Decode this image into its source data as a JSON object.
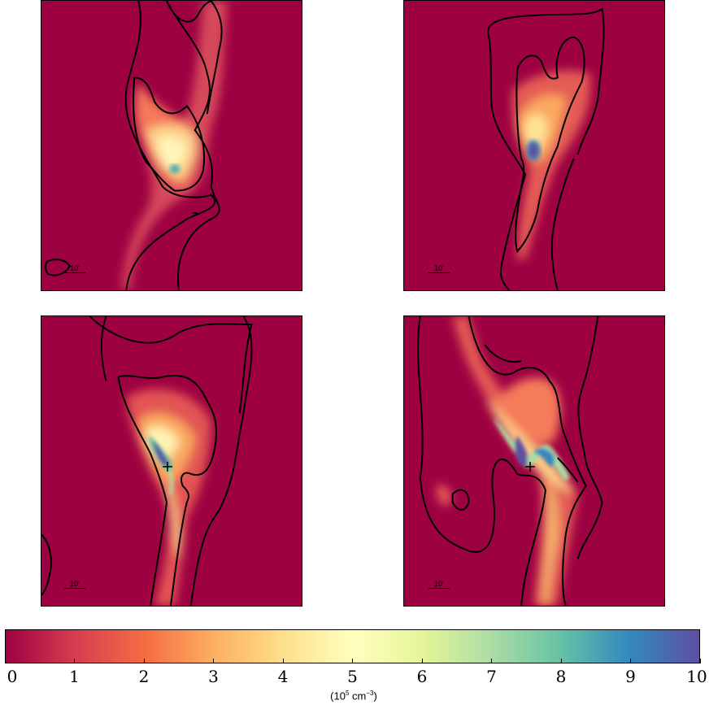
{
  "colorbar": {
    "ticks": [
      "0",
      "1",
      "2",
      "3",
      "4",
      "5",
      "6",
      "7",
      "8",
      "9",
      "10"
    ],
    "label_prefix": "(10",
    "label_exp": "5",
    "label_unit": " cm",
    "label_unit_exp": "−3",
    "label_suffix": ")",
    "colors": [
      "#9e0142",
      "#d53e4f",
      "#f46d43",
      "#fdae61",
      "#fee08b",
      "#ffffbf",
      "#e6f598",
      "#abdda4",
      "#66c2a5",
      "#3288bd",
      "#5e4fa2"
    ]
  },
  "panels": [
    {
      "id": "top-left",
      "scale_label": "10′"
    },
    {
      "id": "top-right",
      "scale_label": "10′"
    },
    {
      "id": "bottom-left",
      "scale_label": "10′"
    },
    {
      "id": "bottom-right",
      "scale_label": "10′"
    }
  ]
}
